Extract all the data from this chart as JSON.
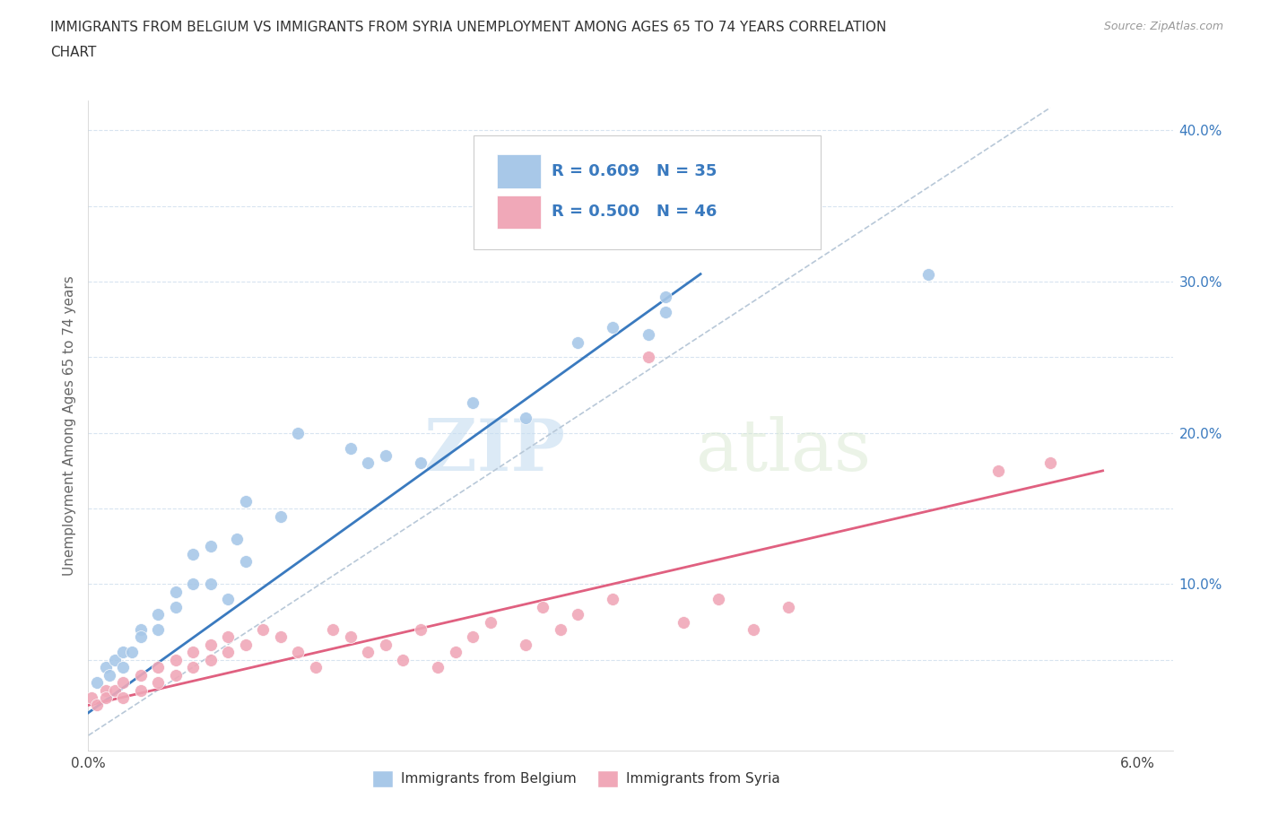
{
  "title": "IMMIGRANTS FROM BELGIUM VS IMMIGRANTS FROM SYRIA UNEMPLOYMENT AMONG AGES 65 TO 74 YEARS CORRELATION\nCHART",
  "source_text": "Source: ZipAtlas.com",
  "ylabel": "Unemployment Among Ages 65 to 74 years",
  "xlim": [
    0.0,
    0.062
  ],
  "ylim": [
    -0.01,
    0.42
  ],
  "xticks": [
    0.0,
    0.01,
    0.02,
    0.03,
    0.04,
    0.05,
    0.06
  ],
  "xticklabels": [
    "0.0%",
    "",
    "",
    "",
    "",
    "",
    "6.0%"
  ],
  "yticks": [
    0.0,
    0.05,
    0.1,
    0.15,
    0.2,
    0.25,
    0.3,
    0.35,
    0.4
  ],
  "yticklabels": [
    "",
    "",
    "10.0%",
    "",
    "20.0%",
    "",
    "30.0%",
    "",
    "40.0%"
  ],
  "grid_color": "#d8e4f0",
  "background_color": "#ffffff",
  "watermark_zip": "ZIP",
  "watermark_atlas": "atlas",
  "belgium_color": "#a8c8e8",
  "syria_color": "#f0a8b8",
  "belgium_line_color": "#3a7abf",
  "syria_line_color": "#e06080",
  "trendline_dash_color": "#b8c8d8",
  "legend_label_belgium": "R = 0.609   N = 35",
  "legend_label_syria": "R = 0.500   N = 46",
  "legend_label_belgium_text": "Immigrants from Belgium",
  "legend_label_syria_text": "Immigrants from Syria",
  "belgium_x": [
    0.0005,
    0.001,
    0.0012,
    0.0015,
    0.002,
    0.002,
    0.0025,
    0.003,
    0.003,
    0.004,
    0.004,
    0.005,
    0.005,
    0.006,
    0.006,
    0.007,
    0.007,
    0.008,
    0.0085,
    0.009,
    0.009,
    0.011,
    0.012,
    0.015,
    0.016,
    0.017,
    0.019,
    0.022,
    0.025,
    0.028,
    0.03,
    0.032,
    0.033,
    0.033,
    0.048
  ],
  "belgium_y": [
    0.035,
    0.045,
    0.04,
    0.05,
    0.045,
    0.055,
    0.055,
    0.07,
    0.065,
    0.07,
    0.08,
    0.085,
    0.095,
    0.1,
    0.12,
    0.1,
    0.125,
    0.09,
    0.13,
    0.115,
    0.155,
    0.145,
    0.2,
    0.19,
    0.18,
    0.185,
    0.18,
    0.22,
    0.21,
    0.26,
    0.27,
    0.265,
    0.29,
    0.28,
    0.305
  ],
  "syria_x": [
    0.0002,
    0.0005,
    0.001,
    0.001,
    0.0015,
    0.002,
    0.002,
    0.003,
    0.003,
    0.004,
    0.004,
    0.005,
    0.005,
    0.006,
    0.006,
    0.007,
    0.007,
    0.008,
    0.008,
    0.009,
    0.01,
    0.011,
    0.012,
    0.013,
    0.014,
    0.015,
    0.016,
    0.017,
    0.018,
    0.019,
    0.02,
    0.021,
    0.022,
    0.023,
    0.025,
    0.026,
    0.027,
    0.028,
    0.03,
    0.032,
    0.034,
    0.036,
    0.038,
    0.04,
    0.052,
    0.055
  ],
  "syria_y": [
    0.025,
    0.02,
    0.03,
    0.025,
    0.03,
    0.025,
    0.035,
    0.03,
    0.04,
    0.035,
    0.045,
    0.04,
    0.05,
    0.045,
    0.055,
    0.05,
    0.06,
    0.055,
    0.065,
    0.06,
    0.07,
    0.065,
    0.055,
    0.045,
    0.07,
    0.065,
    0.055,
    0.06,
    0.05,
    0.07,
    0.045,
    0.055,
    0.065,
    0.075,
    0.06,
    0.085,
    0.07,
    0.08,
    0.09,
    0.25,
    0.075,
    0.09,
    0.07,
    0.085,
    0.175,
    0.18
  ],
  "belgium_trendline_x": [
    0.0,
    0.035
  ],
  "belgium_trendline_y": [
    0.015,
    0.305
  ],
  "syria_trendline_x": [
    0.0,
    0.058
  ],
  "syria_trendline_y": [
    0.02,
    0.175
  ],
  "dash_line_x": [
    0.0,
    0.055
  ],
  "dash_line_y": [
    0.0,
    0.415
  ]
}
